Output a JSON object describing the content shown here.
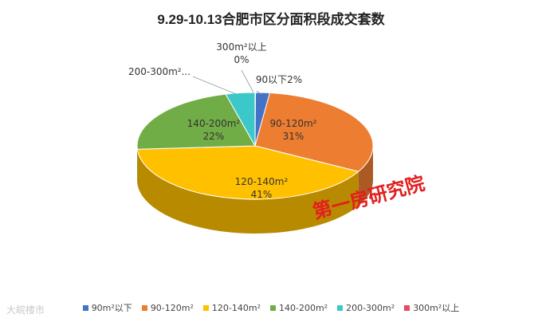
{
  "chart_data": {
    "type": "pie",
    "title": "9.29-10.13合肥市区分面积段成交套数",
    "legend_position": "bottom",
    "slices": [
      {
        "name": "90m²以下",
        "value": 2,
        "label": "90以下2%",
        "color": "#4472c4"
      },
      {
        "name": "90-120m²",
        "value": 31,
        "label": "90-120m²\n31%",
        "color": "#ed7d31"
      },
      {
        "name": "120-140m²",
        "value": 41,
        "label": "120-140m²\n41%",
        "color": "#ffc000"
      },
      {
        "name": "140-200m²",
        "value": 22,
        "label": "140-200m²\n22%",
        "color": "#70ad47"
      },
      {
        "name": "200-300m²",
        "value": 4,
        "label": "200-300m²...",
        "color": "#3cc8c8"
      },
      {
        "name": "300m²以上",
        "value": 0,
        "label": "300m²以上\n0%",
        "color": "#e84a5f"
      }
    ]
  },
  "watermark": "第一房研究院",
  "corner_mark": "大皖楼市"
}
